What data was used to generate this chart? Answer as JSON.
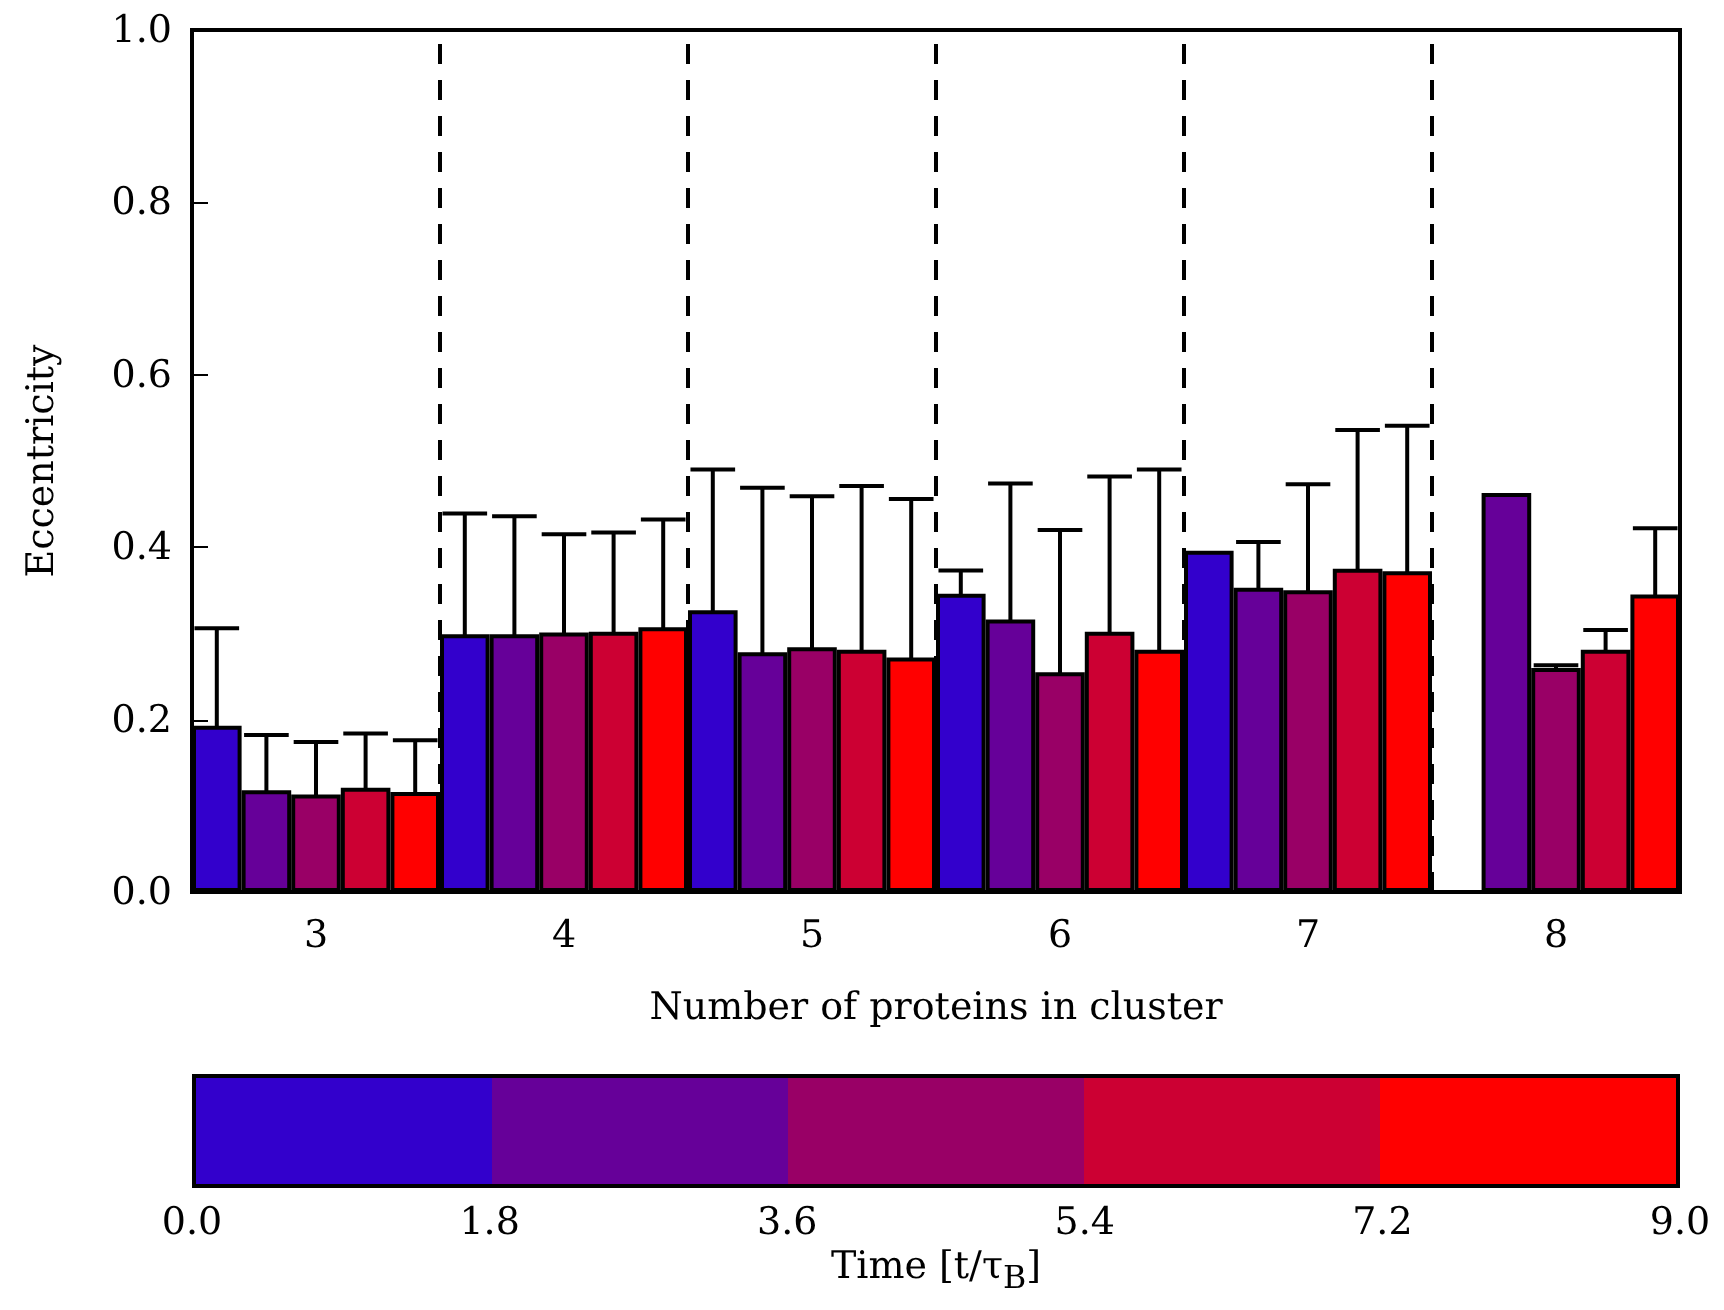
{
  "chart_data": {
    "type": "bar",
    "x": [
      3,
      4,
      5,
      6,
      7,
      8
    ],
    "xlim": [
      2.5,
      8.5
    ],
    "xticks": [
      3,
      4,
      5,
      6,
      7,
      8
    ],
    "ylim": [
      0,
      1
    ],
    "yticks": [
      {
        "value": 0,
        "label": "0.0"
      },
      {
        "value": 0.2,
        "label": "0.2"
      },
      {
        "value": 0.4,
        "label": "0.4"
      },
      {
        "value": 0.6,
        "label": "0.6"
      },
      {
        "value": 0.8,
        "label": "0.8"
      },
      {
        "value": 1,
        "label": "1.0"
      }
    ],
    "xlabel": "Number of proteins in cluster",
    "ylabel": "Eccentricity",
    "clabel": "Time [t/τ$_{B}$]",
    "clim": [
      0,
      9
    ],
    "cticks": [
      {
        "value": 0,
        "label": "0.0"
      },
      {
        "value": 1.8,
        "label": "1.8"
      },
      {
        "value": 3.6,
        "label": "3.6"
      },
      {
        "value": 5.4,
        "label": "5.4"
      },
      {
        "value": 7.2,
        "label": "7.2"
      },
      {
        "value": 9,
        "label": "9.0"
      }
    ],
    "grid": false,
    "ref_lines": [
      {
        "axis": "x",
        "value": 3.5,
        "line_style": "dashed",
        "color": "#000000"
      },
      {
        "axis": "x",
        "value": 4.5,
        "line_style": "dashed",
        "color": "#000000"
      },
      {
        "axis": "x",
        "value": 5.5,
        "line_style": "dashed",
        "color": "#000000"
      },
      {
        "axis": "x",
        "value": 6.5,
        "line_style": "dashed",
        "color": "#000000"
      },
      {
        "axis": "x",
        "value": 7.5,
        "line_style": "dashed",
        "color": "#000000"
      }
    ],
    "series": [
      {
        "color": "#3300cc",
        "values": [
          0.193,
          0.299,
          0.327,
          0.346,
          0.396,
          null
        ],
        "errors": [
          0.113,
          0.14,
          0.163,
          0.027,
          null,
          null
        ]
      },
      {
        "color": "#660099",
        "values": [
          0.118,
          0.299,
          0.278,
          0.316,
          0.353,
          0.463
        ],
        "errors": [
          0.064,
          0.137,
          0.191,
          0.158,
          0.053,
          null
        ]
      },
      {
        "color": "#990066",
        "values": [
          0.113,
          0.301,
          0.284,
          0.255,
          0.35,
          0.26
        ],
        "errors": [
          0.061,
          0.114,
          0.175,
          0.165,
          0.123,
          0.003
        ]
      },
      {
        "color": "#cc0033",
        "values": [
          0.121,
          0.302,
          0.281,
          0.302,
          0.375,
          0.281
        ],
        "errors": [
          0.063,
          0.115,
          0.19,
          0.18,
          0.161,
          0.023
        ]
      },
      {
        "color": "#ff0000",
        "values": [
          0.116,
          0.307,
          0.272,
          0.281,
          0.372,
          0.345
        ],
        "errors": [
          0.06,
          0.125,
          0.184,
          0.209,
          0.169,
          0.077
        ]
      }
    ]
  }
}
